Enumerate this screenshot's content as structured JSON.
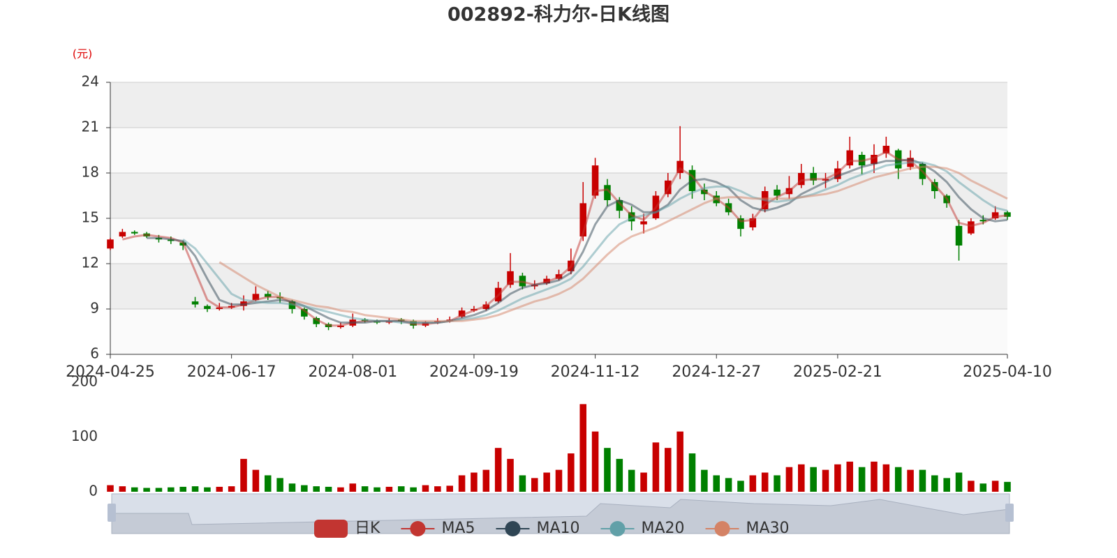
{
  "chart_data": {
    "type": "candlestick",
    "title": "002892-科力尔-日K线图",
    "y_unit": "(元)",
    "categories": [
      "2024-04-25",
      null,
      null,
      null,
      null,
      null,
      null,
      null,
      null,
      null,
      "2024-06-17",
      null,
      null,
      null,
      null,
      null,
      null,
      null,
      null,
      null,
      "2024-08-01",
      null,
      null,
      null,
      null,
      null,
      null,
      null,
      null,
      null,
      "2024-09-19",
      null,
      null,
      null,
      null,
      null,
      null,
      null,
      null,
      null,
      "2024-11-12",
      null,
      null,
      null,
      null,
      null,
      null,
      null,
      null,
      null,
      "2024-12-27",
      null,
      null,
      null,
      null,
      null,
      null,
      null,
      null,
      null,
      "2025-02-21",
      null,
      null,
      null,
      null,
      null,
      null,
      null,
      null,
      null,
      null,
      null,
      null,
      null,
      "2025-04-10"
    ],
    "ylim": [
      6,
      24
    ],
    "yticks": [
      6,
      9,
      12,
      15,
      18,
      21,
      24
    ],
    "grid": true,
    "up_color": "#c80000",
    "down_color": "#008000",
    "series": [
      {
        "name": "日K",
        "type": "candlestick",
        "color": "#c23531",
        "values": [
          [
            13.0,
            13.6,
            12.9,
            13.7
          ],
          [
            13.8,
            14.1,
            13.7,
            14.3
          ],
          [
            14.1,
            14.0,
            13.9,
            14.2
          ],
          [
            14.0,
            13.8,
            13.7,
            14.1
          ],
          [
            13.7,
            13.6,
            13.4,
            13.9
          ],
          [
            13.6,
            13.5,
            13.3,
            13.8
          ],
          [
            13.4,
            13.2,
            12.9,
            13.5
          ],
          [
            9.5,
            9.3,
            9.1,
            9.8
          ],
          [
            9.2,
            9.0,
            8.8,
            9.3
          ],
          [
            9.0,
            9.1,
            8.9,
            9.4
          ],
          [
            9.1,
            9.2,
            9.0,
            9.4
          ],
          [
            9.2,
            9.5,
            8.9,
            9.9
          ],
          [
            9.6,
            10.0,
            9.5,
            10.5
          ],
          [
            10.0,
            9.8,
            9.6,
            10.2
          ],
          [
            9.8,
            9.7,
            9.4,
            10.1
          ],
          [
            9.5,
            9.0,
            8.7,
            9.6
          ],
          [
            9.0,
            8.5,
            8.3,
            9.1
          ],
          [
            8.4,
            8.0,
            7.8,
            8.5
          ],
          [
            8.0,
            7.8,
            7.6,
            8.1
          ],
          [
            7.8,
            7.9,
            7.7,
            8.1
          ],
          [
            7.9,
            8.3,
            7.8,
            8.7
          ],
          [
            8.3,
            8.2,
            8.1,
            8.4
          ],
          [
            8.2,
            8.1,
            8.0,
            8.3
          ],
          [
            8.1,
            8.2,
            8.0,
            8.4
          ],
          [
            8.3,
            8.2,
            8.0,
            8.4
          ],
          [
            8.2,
            7.9,
            7.7,
            8.3
          ],
          [
            7.9,
            8.1,
            7.8,
            8.2
          ],
          [
            8.1,
            8.2,
            8.0,
            8.4
          ],
          [
            8.2,
            8.3,
            8.1,
            8.5
          ],
          [
            8.5,
            8.9,
            8.4,
            9.1
          ],
          [
            8.9,
            9.0,
            8.8,
            9.2
          ],
          [
            9.0,
            9.3,
            8.9,
            9.5
          ],
          [
            9.5,
            10.4,
            9.4,
            10.8
          ],
          [
            10.6,
            11.5,
            10.4,
            12.7
          ],
          [
            11.2,
            10.5,
            10.3,
            11.4
          ],
          [
            10.5,
            10.6,
            10.3,
            10.9
          ],
          [
            10.7,
            11.0,
            10.6,
            11.2
          ],
          [
            11.0,
            11.3,
            10.9,
            11.6
          ],
          [
            11.5,
            12.2,
            11.3,
            13.0
          ],
          [
            13.8,
            16.0,
            13.5,
            17.4
          ],
          [
            16.5,
            18.5,
            16.3,
            19.0
          ],
          [
            17.2,
            16.2,
            15.8,
            17.6
          ],
          [
            16.2,
            15.5,
            15.0,
            16.4
          ],
          [
            15.4,
            14.8,
            14.2,
            15.8
          ],
          [
            14.6,
            14.8,
            14.0,
            15.3
          ],
          [
            15.0,
            16.5,
            14.9,
            16.8
          ],
          [
            16.6,
            17.5,
            16.4,
            18.0
          ],
          [
            18.0,
            18.8,
            17.6,
            21.1
          ],
          [
            18.2,
            16.8,
            16.3,
            18.5
          ],
          [
            16.9,
            16.6,
            16.2,
            17.3
          ],
          [
            16.5,
            16.0,
            15.8,
            16.8
          ],
          [
            16.0,
            15.4,
            15.2,
            16.3
          ],
          [
            15.0,
            14.3,
            13.8,
            15.2
          ],
          [
            14.4,
            15.0,
            14.2,
            15.3
          ],
          [
            15.6,
            16.8,
            15.4,
            17.1
          ],
          [
            16.9,
            16.5,
            16.2,
            17.2
          ],
          [
            16.6,
            17.0,
            16.3,
            17.8
          ],
          [
            17.2,
            18.0,
            17.0,
            18.6
          ],
          [
            18.0,
            17.5,
            17.2,
            18.4
          ],
          [
            17.5,
            17.6,
            17.0,
            18.0
          ],
          [
            17.6,
            18.3,
            17.4,
            18.8
          ],
          [
            18.5,
            19.5,
            18.3,
            20.4
          ],
          [
            19.2,
            18.5,
            17.9,
            19.4
          ],
          [
            18.6,
            19.2,
            18.0,
            19.9
          ],
          [
            19.3,
            19.8,
            19.0,
            20.4
          ],
          [
            19.5,
            18.3,
            17.6,
            19.6
          ],
          [
            18.4,
            19.0,
            18.2,
            19.5
          ],
          [
            18.6,
            17.6,
            17.2,
            18.7
          ],
          [
            17.4,
            16.8,
            16.3,
            17.6
          ],
          [
            16.5,
            16.0,
            15.7,
            16.6
          ],
          [
            14.5,
            13.2,
            12.2,
            14.9
          ],
          [
            14.0,
            14.8,
            13.9,
            15.0
          ],
          [
            14.9,
            14.8,
            14.6,
            15.2
          ],
          [
            15.0,
            15.4,
            14.9,
            15.8
          ],
          [
            15.4,
            15.1,
            14.9,
            15.5
          ]
        ]
      },
      {
        "name": "MA5",
        "type": "line",
        "color": "#c23531",
        "values": [
          null,
          13.6,
          13.8,
          13.9,
          13.8,
          13.7,
          13.4,
          11.5,
          9.6,
          9.1,
          9.1,
          9.3,
          9.6,
          9.8,
          9.8,
          9.4,
          8.9,
          8.3,
          7.9,
          7.9,
          8.1,
          8.2,
          8.2,
          8.2,
          8.2,
          8.0,
          8.0,
          8.1,
          8.2,
          8.6,
          8.9,
          9.2,
          9.9,
          10.8,
          10.8,
          10.6,
          10.8,
          11.1,
          11.8,
          14.0,
          16.8,
          16.9,
          16.0,
          15.2,
          14.9,
          15.7,
          16.9,
          18.3,
          17.8,
          16.8,
          16.3,
          15.7,
          14.8,
          14.9,
          15.9,
          16.4,
          16.8,
          17.5,
          17.6,
          17.6,
          18.0,
          18.8,
          18.8,
          19.0,
          19.4,
          18.9,
          18.8,
          18.1,
          17.2,
          16.3,
          14.7,
          14.5,
          14.7,
          15.1,
          15.2
        ]
      },
      {
        "name": "MA10",
        "type": "line",
        "color": "#2f4554",
        "values": [
          null,
          null,
          null,
          13.7,
          13.7,
          13.6,
          13.5,
          12.5,
          11.0,
          9.6,
          9.3,
          9.3,
          9.4,
          9.5,
          9.6,
          9.5,
          9.2,
          8.8,
          8.4,
          8.1,
          8.1,
          8.1,
          8.2,
          8.2,
          8.2,
          8.1,
          8.1,
          8.1,
          8.2,
          8.4,
          8.6,
          8.9,
          9.4,
          10.0,
          10.4,
          10.6,
          10.7,
          10.9,
          11.4,
          12.8,
          14.6,
          15.8,
          16.2,
          15.9,
          15.4,
          15.4,
          15.9,
          16.9,
          17.5,
          17.6,
          17.4,
          17.0,
          16.2,
          15.7,
          15.5,
          15.7,
          16.0,
          16.6,
          17.0,
          17.4,
          17.8,
          18.1,
          18.4,
          18.6,
          18.8,
          18.8,
          18.9,
          18.6,
          18.1,
          17.4,
          16.4,
          15.6,
          15.0,
          14.8,
          14.9
        ]
      },
      {
        "name": "MA20",
        "type": "line",
        "color": "#61a0a8",
        "values": [
          null,
          null,
          null,
          null,
          null,
          null,
          13.6,
          13.0,
          12.0,
          11.0,
          10.0,
          9.6,
          9.5,
          9.4,
          9.4,
          9.3,
          9.2,
          9.0,
          8.8,
          8.6,
          8.4,
          8.3,
          8.2,
          8.2,
          8.1,
          8.1,
          8.1,
          8.1,
          8.2,
          8.3,
          8.4,
          8.6,
          8.9,
          9.3,
          9.7,
          10.0,
          10.3,
          10.6,
          11.0,
          11.8,
          12.8,
          13.8,
          14.6,
          15.0,
          15.2,
          15.4,
          15.8,
          16.3,
          16.7,
          17.0,
          17.1,
          17.1,
          16.8,
          16.4,
          16.2,
          16.1,
          16.2,
          16.4,
          16.6,
          16.9,
          17.2,
          17.6,
          17.9,
          18.2,
          18.5,
          18.6,
          18.7,
          18.7,
          18.5,
          18.1,
          17.4,
          16.8,
          16.2,
          15.7,
          15.5
        ]
      },
      {
        "name": "MA30",
        "type": "line",
        "color": "#d48265",
        "values": [
          null,
          null,
          null,
          null,
          null,
          null,
          null,
          null,
          null,
          12.1,
          11.6,
          11.1,
          10.6,
          10.2,
          9.8,
          9.6,
          9.4,
          9.2,
          9.1,
          8.9,
          8.8,
          8.6,
          8.5,
          8.4,
          8.3,
          8.2,
          8.2,
          8.2,
          8.2,
          8.2,
          8.3,
          8.4,
          8.6,
          8.9,
          9.2,
          9.5,
          9.7,
          10.0,
          10.4,
          11.0,
          11.8,
          12.6,
          13.3,
          13.8,
          14.1,
          14.4,
          14.8,
          15.2,
          15.6,
          16.0,
          16.3,
          16.4,
          16.4,
          16.3,
          16.3,
          16.3,
          16.3,
          16.4,
          16.5,
          16.6,
          16.8,
          17.1,
          17.4,
          17.7,
          17.9,
          18.1,
          18.3,
          18.4,
          18.4,
          18.3,
          18.0,
          17.5,
          17.1,
          16.7,
          16.3
        ]
      }
    ],
    "volume": {
      "values": [
        12,
        10,
        8,
        7,
        7,
        8,
        9,
        10,
        8,
        9,
        10,
        60,
        40,
        30,
        25,
        15,
        12,
        10,
        9,
        8,
        15,
        10,
        8,
        9,
        10,
        8,
        12,
        10,
        11,
        30,
        35,
        40,
        80,
        60,
        30,
        25,
        35,
        40,
        70,
        160,
        110,
        80,
        60,
        40,
        35,
        90,
        80,
        110,
        70,
        40,
        30,
        25,
        20,
        30,
        35,
        30,
        45,
        50,
        45,
        40,
        50,
        55,
        45,
        55,
        50,
        45,
        40,
        40,
        30,
        25,
        35,
        20,
        15,
        20,
        18
      ],
      "ylim": [
        0,
        200
      ],
      "yticks": [
        0,
        100,
        200
      ]
    }
  }
}
